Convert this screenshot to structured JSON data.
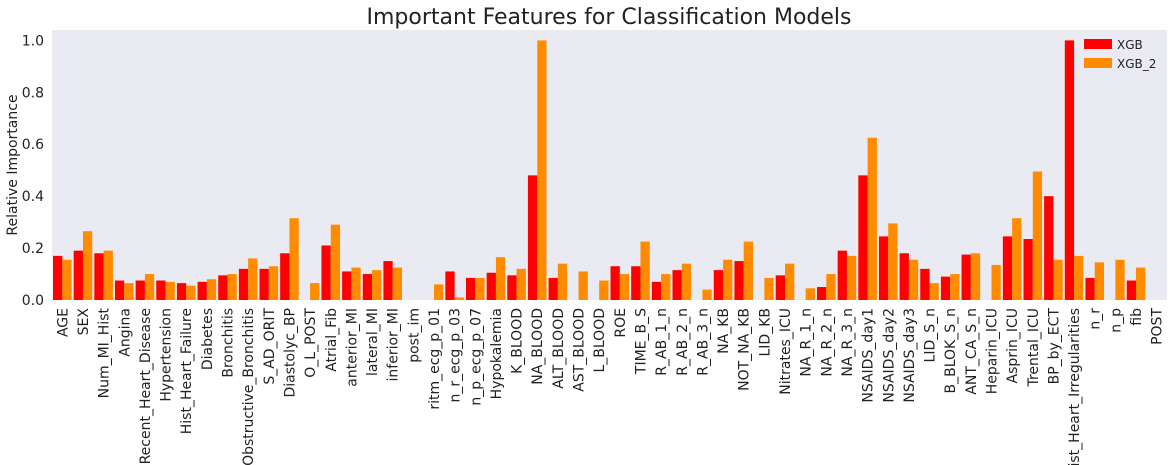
{
  "chart_data": {
    "type": "bar",
    "title": "Important Features for Classification Models",
    "xlabel": "",
    "ylabel": "Relative Importance",
    "ylim": [
      0,
      1.04
    ],
    "yticks": [
      "0.0",
      "0.2",
      "0.4",
      "0.6",
      "0.8",
      "1.0"
    ],
    "grid": false,
    "legend_position": "top-right",
    "categories": [
      "AGE",
      "SEX",
      "Num_MI_Hist",
      "Angina",
      "Recent_Heart_Disease",
      "Hypertension",
      "Hist_Heart_Failure",
      "Diabetes",
      "Bronchitis",
      "Obstructive_Bronchitis",
      "S_AD_ORIT",
      "Diastolyc_BP",
      "O_L_POST",
      "Atrial_Fib",
      "anterior_MI",
      "lateral_MI",
      "inferior_MI",
      "post_im",
      "ritm_ecg_p_01",
      "n_r_ecg_p_03",
      "n_p_ecg_p_07",
      "Hypokalemia",
      "K_BLOOD",
      "NA_BLOOD",
      "ALT_BLOOD",
      "AST_BLOOD",
      "L_BLOOD",
      "ROE",
      "TIME_B_S",
      "R_AB_1_n",
      "R_AB_2_n",
      "R_AB_3_n",
      "NA_KB",
      "NOT_NA_KB",
      "LID_KB",
      "Nitrates_ICU",
      "NA_R_1_n",
      "NA_R_2_n",
      "NA_R_3_n",
      "NSAIDS_day1",
      "NSAIDS_day2",
      "NSAIDS_day3",
      "LID_S_n",
      "B_BLOK_S_n",
      "ANT_CA_S_n",
      "Heparin_ICU",
      "Asprin_ICU",
      "Trental_ICU",
      "BP_by_ECT",
      "Hist_Heart_Irregularities",
      "n_r",
      "n_p",
      "fib",
      "POST"
    ],
    "series": [
      {
        "name": "XGB",
        "color": "#ff0000",
        "values": [
          0.17,
          0.19,
          0.18,
          0.075,
          0.075,
          0.075,
          0.065,
          0.07,
          0.095,
          0.12,
          0.12,
          0.18,
          0,
          0.21,
          0.11,
          0.1,
          0.15,
          0,
          0,
          0.11,
          0.085,
          0.105,
          0.095,
          0.48,
          0.085,
          0,
          0,
          0.13,
          0.13,
          0.07,
          0.115,
          0,
          0.115,
          0.15,
          0,
          0.095,
          0,
          0.05,
          0.19,
          0.48,
          0.245,
          0.18,
          0.12,
          0.09,
          0.175,
          0,
          0.245,
          0.235,
          0.4,
          1.0,
          0.085,
          0,
          0.075,
          0
        ]
      },
      {
        "name": "XGB_2",
        "color": "#ff8c00",
        "values": [
          0.155,
          0.265,
          0.19,
          0.065,
          0.1,
          0.07,
          0.055,
          0.08,
          0.1,
          0.16,
          0.13,
          0.315,
          0.065,
          0.29,
          0.125,
          0.115,
          0.125,
          0,
          0.06,
          0.01,
          0.085,
          0.165,
          0.12,
          1.0,
          0.14,
          0.11,
          0.075,
          0.1,
          0.225,
          0.1,
          0.14,
          0.04,
          0.155,
          0.225,
          0.085,
          0.14,
          0.045,
          0.1,
          0.17,
          0.625,
          0.295,
          0.155,
          0.065,
          0.1,
          0.18,
          0.135,
          0.315,
          0.495,
          0.155,
          0.17,
          0.145,
          0.155,
          0.125,
          0
        ]
      }
    ]
  },
  "style": {
    "plot_background": "#eaeaf2",
    "text_color": "#222222"
  }
}
